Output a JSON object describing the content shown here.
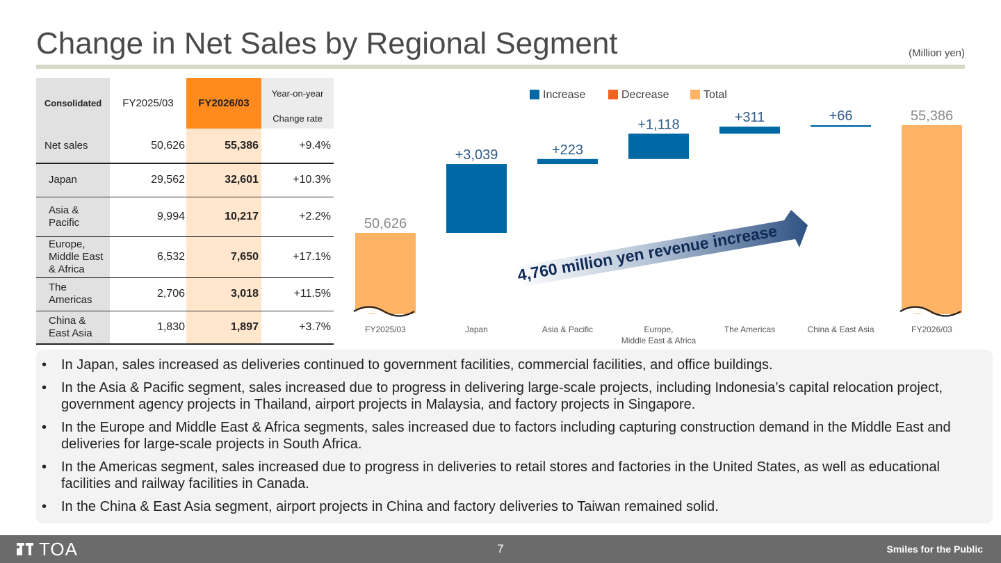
{
  "page": {
    "title": "Change in Net Sales by Regional Segment",
    "unit": "(Million yen)",
    "page_number": "7",
    "logo_text": "TOA",
    "tagline": "Smiles for the Public"
  },
  "table": {
    "header": {
      "consolidated": "Consolidated",
      "fy2025": "FY2025/03",
      "fy2026": "FY2026/03",
      "yoy": "Year-on-year",
      "change_rate": "Change rate"
    },
    "rows": [
      {
        "label": "Net sales",
        "fy2025": "50,626",
        "fy2026": "55,386",
        "yoy": "+9.4%"
      },
      {
        "label": "Japan",
        "fy2025": "29,562",
        "fy2026": "32,601",
        "yoy": "+10.3%"
      },
      {
        "label": "Asia &\nPacific",
        "fy2025": "9,994",
        "fy2026": "10,217",
        "yoy": "+2.2%"
      },
      {
        "label": "Europe,\nMiddle East\n& Africa",
        "fy2025": "6,532",
        "fy2026": "7,650",
        "yoy": "+17.1%"
      },
      {
        "label": "The\nAmericas",
        "fy2025": "2,706",
        "fy2026": "3,018",
        "yoy": "+11.5%"
      },
      {
        "label": "China &\nEast Asia",
        "fy2025": "1,830",
        "fy2026": "1,897",
        "yoy": "+3.7%"
      }
    ]
  },
  "chart_data": {
    "type": "bar",
    "subtype": "waterfall",
    "legend": [
      {
        "label": "Increase",
        "color": "#0068a5"
      },
      {
        "label": "Decrease",
        "color": "#f26321"
      },
      {
        "label": "Total",
        "color": "#ffb365"
      }
    ],
    "legend_position": "top",
    "categories": [
      "FY2025/03",
      "Japan",
      "Asia & Pacific",
      "Europe,\nMiddle East & Africa",
      "The Americas",
      "China & East Asia",
      "FY2026/03"
    ],
    "values": [
      50626,
      3039,
      223,
      1118,
      311,
      66,
      55386
    ],
    "kinds": [
      "total",
      "increase",
      "increase",
      "increase",
      "increase",
      "increase",
      "total"
    ],
    "labels": [
      "50,626",
      "+3,039",
      "+223",
      "+1,118",
      "+311",
      "+66",
      "55,386"
    ],
    "axis_break": true,
    "annotation": "4,760 million yen revenue increase"
  },
  "bullets": [
    "In Japan, sales increased as deliveries continued to government facilities, commercial facilities, and office buildings.",
    "In the Asia & Pacific segment, sales increased due to progress in delivering large-scale projects, including Indonesia’s capital relocation project, government agency projects in Thailand, airport projects in Malaysia, and factory projects in Singapore.",
    "In the Europe and Middle East & Africa segments, sales increased due to factors including capturing construction demand in the Middle East and deliveries for large-scale projects in South Africa.",
    "In the Americas segment, sales increased due to progress in deliveries to retail stores and factories in the United States, as well as educational facilities and railway facilities in Canada.",
    "In the China & East Asia segment, airport projects in China and factory deliveries to Taiwan remained solid."
  ]
}
